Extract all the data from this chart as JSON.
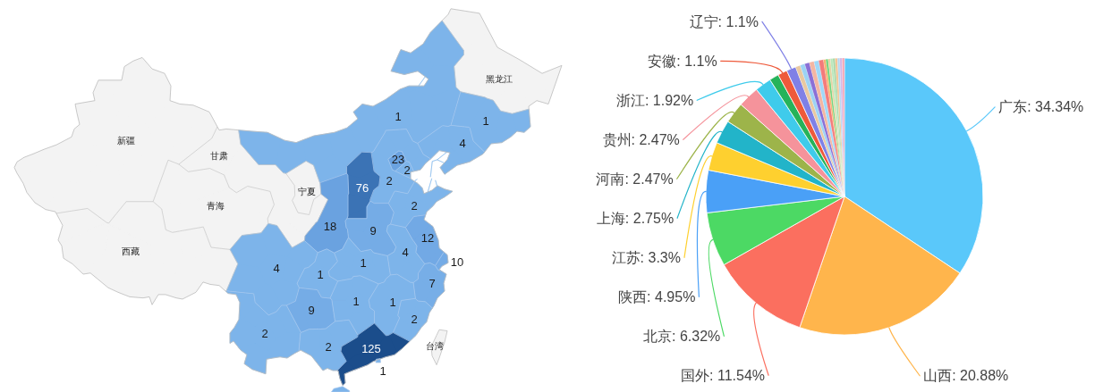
{
  "chart_data": [
    {
      "type": "other",
      "value_labels": [
        "1",
        "1",
        "4",
        "23",
        "2",
        "2",
        "76",
        "2",
        "18",
        "9",
        "12",
        "10",
        "4",
        "7",
        "1",
        "1",
        "4",
        "9",
        "1",
        "1",
        "2",
        "2",
        "2",
        "125",
        "1",
        null
      ],
      "colors": [
        "#7db4ea",
        "#7db4ea",
        "#7db4ea",
        "#6aa2e0",
        "#7db4ea",
        "#7db4ea",
        "#3b73b5",
        "#7db4ea",
        "#6aa2e0",
        "#75ace6",
        "#72a9e5",
        "#74abe6",
        "#7db4ea",
        "#77aee7",
        "#7db4ea",
        "#7db4ea",
        "#7db4ea",
        "#75ace6",
        "#7db4ea",
        "#7db4ea",
        "#7db4ea",
        "#7db4ea",
        "#7db4ea",
        "#1b4d8b",
        "#7db4ea",
        "#7db4ea"
      ],
      "annotations": [
        "新疆",
        "西藏",
        "青海",
        "甘肃",
        "宁夏",
        "黑龙江",
        "台湾"
      ]
    },
    {
      "type": "pie",
      "categories": [
        "广东",
        "山西",
        "国外",
        "北京",
        "陕西",
        "江苏",
        "上海",
        "河南",
        "贵州",
        "浙江",
        null,
        "安徽",
        "辽宁",
        null,
        null,
        null,
        null,
        null,
        null,
        null,
        null,
        null,
        null,
        null,
        null,
        null,
        null,
        null
      ],
      "values": [
        34.34,
        20.88,
        11.54,
        6.32,
        4.95,
        3.3,
        2.75,
        2.47,
        2.47,
        1.92,
        1.1,
        1.1,
        1.1,
        0.55,
        0.55,
        0.55,
        0.55,
        0.55,
        0.55,
        0.27,
        0.27,
        0.27,
        0.27,
        0.27,
        0.27,
        0.27,
        0.27,
        0.27
      ],
      "value_labels": [
        "34.34%",
        "20.88%",
        "11.54%",
        "6.32%",
        "4.95%",
        "3.3%",
        "2.75%",
        "2.47%",
        "2.47%",
        "1.92%",
        null,
        "1.1%",
        "1.1%",
        null,
        null,
        null,
        null,
        null,
        null,
        null,
        null,
        null,
        null,
        null,
        null,
        null,
        null,
        null
      ],
      "colors": [
        "#5ac8fa",
        "#ffb54c",
        "#fb6f5f",
        "#4cd964",
        "#4aa0f7",
        "#fed02f",
        "#22b4c9",
        "#9db44a",
        "#f5939b",
        "#3fcbeb",
        "#26b35a",
        "#ee5a3b",
        "#7f80e6",
        "#e9c8a0",
        "#9cd2f4",
        "#8a6fd6",
        "#f4b6a2",
        "#a0d8f8",
        "#f37b7b",
        "#f7b16a",
        "#6fd37a",
        "#e3d3a2",
        "#b9e7b9",
        "#a8d8a8",
        "#f5c28e",
        "#b4d7f0",
        "#d4b5e6",
        "#f4a9b8"
      ]
    }
  ]
}
